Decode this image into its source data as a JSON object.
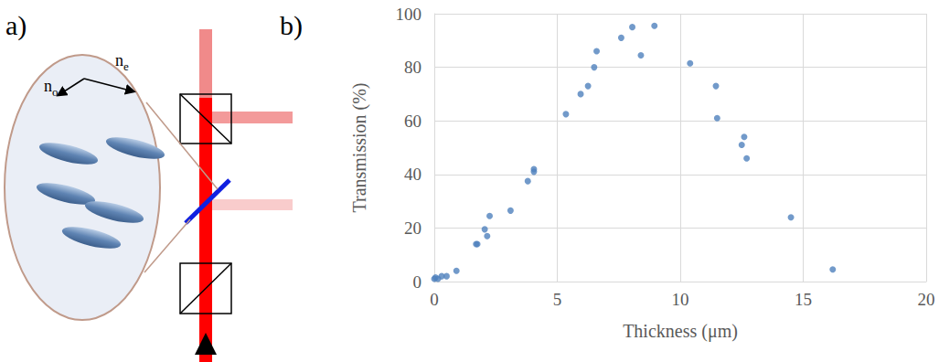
{
  "diagram": {
    "label": "a)",
    "index_labels": [
      {
        "text": "n",
        "subscript": "o"
      },
      {
        "text": "n",
        "subscript": "e"
      }
    ]
  },
  "chart_data": {
    "label": "b)",
    "type": "scatter",
    "x_label": "Thickness (μm)",
    "y_label": "Transmission (%)",
    "x": [
      0,
      0.05,
      0.15,
      0.3,
      0.5,
      0.9,
      1.7,
      1.75,
      2.05,
      2.15,
      2.25,
      3.1,
      3.8,
      4.05,
      4.05,
      5.35,
      5.95,
      6.25,
      6.5,
      6.6,
      7.6,
      8.05,
      8.4,
      8.95,
      10.4,
      11.45,
      11.5,
      12.5,
      12.6,
      12.7,
      14.5,
      16.2
    ],
    "values": [
      1,
      1.5,
      1,
      2,
      2,
      4,
      14,
      14,
      19.5,
      17,
      24.5,
      26.5,
      37.5,
      41,
      42,
      62.5,
      70,
      73,
      80,
      86,
      91,
      95,
      84.5,
      95.5,
      81.5,
      73,
      61,
      51,
      54,
      46,
      24,
      4.5
    ],
    "color": "#4f81bd",
    "marker": "circle",
    "xlim": [
      0,
      20
    ],
    "xticks": [
      0,
      5,
      10,
      15,
      20
    ],
    "ylim": [
      0,
      100
    ],
    "yticks": [
      0,
      20,
      40,
      60,
      80,
      100
    ],
    "grid": true
  }
}
